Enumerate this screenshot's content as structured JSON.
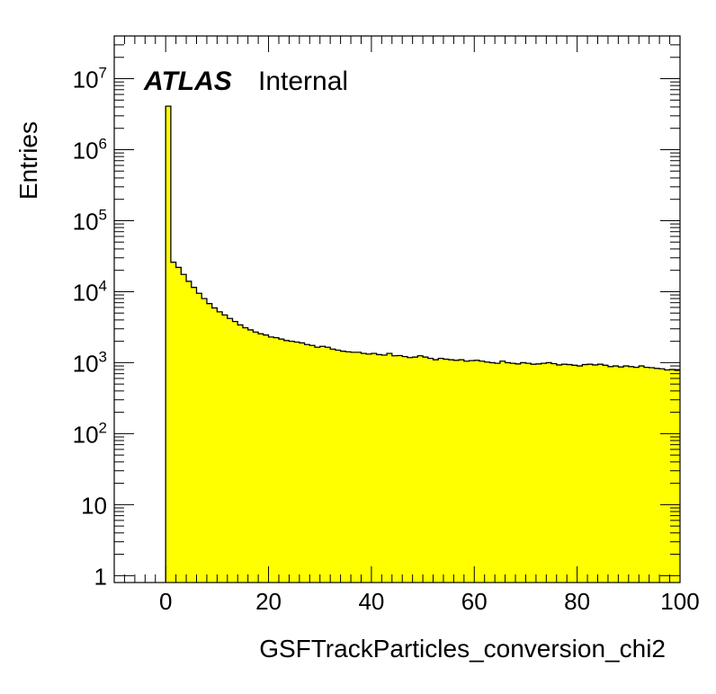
{
  "chart_data": {
    "type": "bar",
    "style": "histogram-step",
    "x_axis_title": "GSFTrackParticles_conversion_chi2",
    "y_axis_title": "Entries",
    "xlim": [
      -10,
      100
    ],
    "ylim": [
      0.8,
      40000000
    ],
    "y_scale": "log",
    "x_ticks": [
      {
        "value": 0,
        "label": "0"
      },
      {
        "value": 20,
        "label": "20"
      },
      {
        "value": 40,
        "label": "40"
      },
      {
        "value": 60,
        "label": "60"
      },
      {
        "value": 80,
        "label": "80"
      },
      {
        "value": 100,
        "label": "100"
      }
    ],
    "y_ticks": [
      {
        "value": 1,
        "base": "1",
        "exp": ""
      },
      {
        "value": 10,
        "base": "10",
        "exp": ""
      },
      {
        "value": 100,
        "base": "10",
        "exp": "2"
      },
      {
        "value": 1000,
        "base": "10",
        "exp": "3"
      },
      {
        "value": 10000,
        "base": "10",
        "exp": "4"
      },
      {
        "value": 100000,
        "base": "10",
        "exp": "5"
      },
      {
        "value": 1000000,
        "base": "10",
        "exp": "6"
      },
      {
        "value": 10000000,
        "base": "10",
        "exp": "7"
      }
    ],
    "bin_edges_start": 0,
    "bin_width": 1,
    "values": [
      4100000,
      26000,
      22000,
      17500,
      14000,
      11500,
      9500,
      8000,
      6800,
      5900,
      5200,
      4700,
      4200,
      3800,
      3400,
      3100,
      2900,
      2700,
      2550,
      2450,
      2300,
      2250,
      2150,
      2050,
      2000,
      1950,
      1900,
      1800,
      1750,
      1650,
      1700,
      1650,
      1550,
      1500,
      1450,
      1420,
      1400,
      1400,
      1350,
      1320,
      1350,
      1300,
      1280,
      1350,
      1250,
      1260,
      1220,
      1180,
      1200,
      1250,
      1200,
      1150,
      1100,
      1150,
      1120,
      1100,
      1080,
      1100,
      1050,
      1070,
      1080,
      1050,
      1020,
      1000,
      980,
      1050,
      1000,
      980,
      960,
      1000,
      980,
      950,
      960,
      980,
      1000,
      970,
      930,
      950,
      940,
      920,
      900,
      940,
      950,
      930,
      950,
      920,
      880,
      900,
      870,
      900,
      880,
      860,
      900,
      860,
      850,
      830,
      820,
      790,
      800,
      780
    ],
    "fill_color": "#ffff00",
    "line_color": "#000000",
    "grid": false,
    "legend": "none",
    "annotations": [
      {
        "bold_italic": "ATLAS",
        "plain": "Internal"
      }
    ]
  }
}
